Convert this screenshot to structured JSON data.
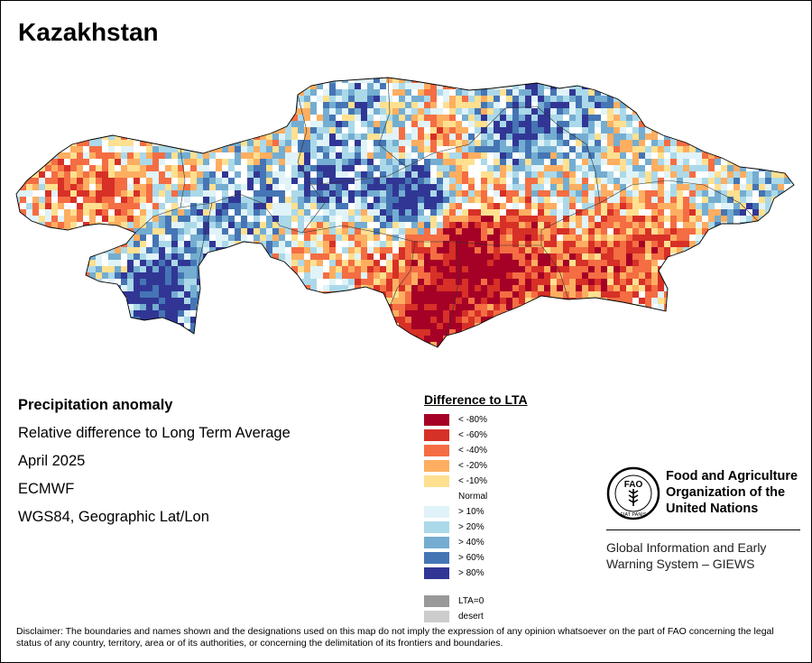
{
  "title": "Kazakhstan",
  "info": {
    "heading": "Precipitation anomaly",
    "subtitle": "Relative difference to Long Term Average",
    "period": "April 2025",
    "source": "ECMWF",
    "projection": "WGS84, Geographic Lat/Lon"
  },
  "legend": {
    "title": "Difference to LTA",
    "items": [
      {
        "label": "< -80%",
        "color": "#a50026"
      },
      {
        "label": "< -60%",
        "color": "#d73027"
      },
      {
        "label": "< -40%",
        "color": "#f46d43"
      },
      {
        "label": "< -20%",
        "color": "#fdae61"
      },
      {
        "label": "< -10%",
        "color": "#fee090"
      },
      {
        "label": "Normal",
        "color": "#ffffff"
      },
      {
        "label": "> 10%",
        "color": "#e0f3f8"
      },
      {
        "label": "> 20%",
        "color": "#abd9e9"
      },
      {
        "label": "> 40%",
        "color": "#74add1"
      },
      {
        "label": "> 60%",
        "color": "#4575b4"
      },
      {
        "label": "> 80%",
        "color": "#313695"
      }
    ],
    "extra": [
      {
        "label": "LTA=0",
        "color": "#999999"
      },
      {
        "label": "desert",
        "color": "#cccccc"
      }
    ]
  },
  "logo": {
    "org_name_line1": "Food and Agriculture",
    "org_name_line2": "Organization of the",
    "org_name_line3": "United Nations",
    "seal_text": "FAO",
    "seal_motto": "FIAT PANIS",
    "system_line1": "Global Information and Early",
    "system_line2": "Warning System – GIEWS"
  },
  "disclaimer": "Disclaimer: The boundaries and names shown and the designations used on this map do not imply the expression of any opinion whatsoever on the part of FAO concerning the legal status of any country, territory, area or of its authorities, or concerning the delimitation of its frontiers and boundaries."
}
